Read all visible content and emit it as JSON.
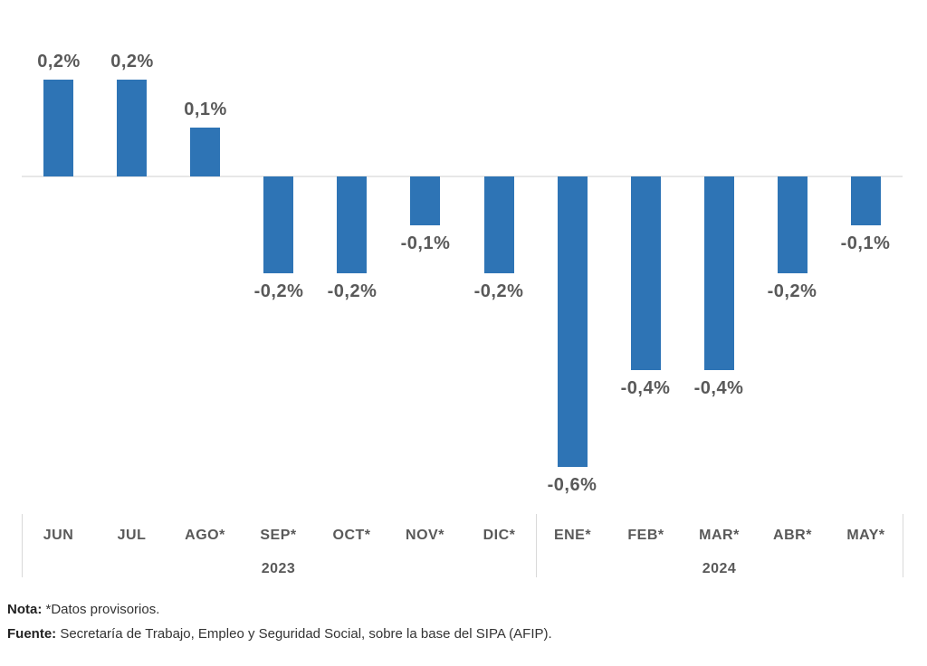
{
  "chart_data": {
    "type": "bar",
    "categories": [
      "JUN",
      "JUL",
      "AGO*",
      "SEP*",
      "OCT*",
      "NOV*",
      "DIC*",
      "ENE*",
      "FEB*",
      "MAR*",
      "ABR*",
      "MAY*"
    ],
    "values": [
      0.2,
      0.2,
      0.1,
      -0.2,
      -0.2,
      -0.1,
      -0.2,
      -0.6,
      -0.4,
      -0.4,
      -0.2,
      -0.1
    ],
    "value_labels": [
      "0,2%",
      "0,2%",
      "0,1%",
      "-0,2%",
      "-0,2%",
      "-0,1%",
      "-0,2%",
      "-0,6%",
      "-0,4%",
      "-0,4%",
      "-0,2%",
      "-0,1%"
    ],
    "year_groups": [
      {
        "label": "2023",
        "under_category_index": 3
      },
      {
        "label": "2024",
        "under_category_index": 9
      }
    ],
    "group_boundary_slots": [
      0,
      7,
      12
    ],
    "title": "",
    "xlabel": "",
    "ylabel": "",
    "ylim": [
      -0.7,
      0.3
    ],
    "grid": false,
    "legend": "none",
    "bar_color": "#2E74B5",
    "value_label_color": "#595959",
    "axis_text_color": "#595959",
    "zero_line_color": "#e7e7e7",
    "separator_color": "#d9d9d9"
  },
  "footer": {
    "note_label": "Nota:",
    "note_text": " *Datos provisorios.",
    "source_label": "Fuente:",
    "source_text": " Secretaría de Trabajo, Empleo y Seguridad Social, sobre la base del SIPA (AFIP)."
  }
}
